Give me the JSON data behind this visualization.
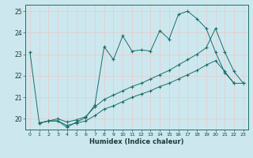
{
  "xlabel": "Humidex (Indice chaleur)",
  "bg_color": "#cce8ee",
  "grid_color": "#ddeeee",
  "line_color": "#1a6e6a",
  "xlim": [
    -0.5,
    23.5
  ],
  "ylim": [
    19.5,
    25.3
  ],
  "yticks": [
    20,
    21,
    22,
    23,
    24,
    25
  ],
  "xticks": [
    0,
    1,
    2,
    3,
    4,
    5,
    6,
    7,
    8,
    9,
    10,
    11,
    12,
    13,
    14,
    15,
    16,
    17,
    18,
    19,
    20,
    21,
    22,
    23
  ],
  "series1_x": [
    0,
    1,
    2,
    3,
    4,
    5,
    6,
    7,
    8,
    9,
    10,
    11,
    12,
    13,
    14,
    15,
    16,
    17,
    18,
    19,
    20,
    21,
    22
  ],
  "series1_y": [
    23.1,
    19.8,
    19.9,
    19.9,
    19.6,
    19.85,
    20.05,
    20.65,
    23.35,
    22.75,
    23.85,
    23.15,
    23.2,
    23.15,
    24.1,
    23.7,
    24.85,
    25.0,
    24.65,
    24.2,
    23.1,
    22.15,
    21.65
  ],
  "series2_x": [
    1,
    2,
    3,
    4,
    5,
    6,
    7,
    8,
    9,
    10,
    11,
    12,
    13,
    14,
    15,
    16,
    17,
    18,
    19,
    20,
    21,
    22,
    23
  ],
  "series2_y": [
    19.8,
    19.9,
    20.0,
    19.85,
    19.95,
    20.1,
    20.55,
    20.9,
    21.1,
    21.3,
    21.5,
    21.65,
    21.85,
    22.05,
    22.25,
    22.5,
    22.75,
    23.0,
    23.3,
    24.2,
    23.1,
    22.2,
    21.65
  ],
  "series3_x": [
    1,
    2,
    3,
    4,
    5,
    6,
    7,
    8,
    9,
    10,
    11,
    12,
    13,
    14,
    15,
    16,
    17,
    18,
    19,
    20,
    21,
    22,
    23
  ],
  "series3_y": [
    19.8,
    19.9,
    19.9,
    19.7,
    19.8,
    19.9,
    20.15,
    20.45,
    20.6,
    20.8,
    21.0,
    21.15,
    21.3,
    21.5,
    21.65,
    21.85,
    22.05,
    22.25,
    22.5,
    22.7,
    22.2,
    21.65,
    21.65
  ]
}
